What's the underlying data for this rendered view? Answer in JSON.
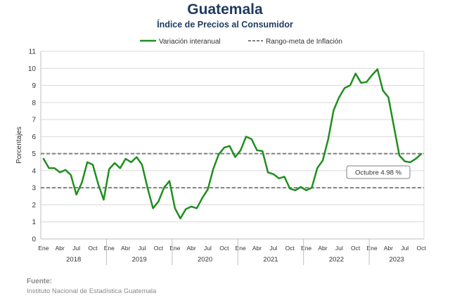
{
  "header": {
    "title": "Guatemala",
    "subtitle": "Índice de Precios al Consumidor"
  },
  "colors": {
    "line": "#1f8f1f",
    "target": "#808080",
    "text": "#1f3a5f"
  },
  "source": {
    "label": "Fuente:",
    "text": "Instituto Nacional de Estadística Guatemala"
  },
  "chart_data": {
    "type": "line",
    "title": "Guatemala",
    "subtitle": "Índice de Precios al Consumidor",
    "ylabel": "Porcentajes",
    "xlabel": "",
    "ylim": [
      0,
      11
    ],
    "yticks": [
      0,
      1,
      2,
      3,
      4,
      5,
      6,
      7,
      8,
      9,
      10,
      11
    ],
    "grid": true,
    "legend_position": "top",
    "month_tick_labels": [
      "Ene",
      "Abr",
      "Jul",
      "Oct"
    ],
    "years": [
      "2018",
      "2019",
      "2020",
      "2021",
      "2022",
      "2023"
    ],
    "x_start": "2018-01",
    "x_end": "2023-10",
    "series": [
      {
        "name": "Variación interanual",
        "style": "solid",
        "values": [
          4.7,
          4.15,
          4.15,
          3.9,
          4.05,
          3.75,
          2.6,
          3.3,
          4.5,
          4.35,
          3.2,
          2.3,
          4.1,
          4.45,
          4.15,
          4.7,
          4.5,
          4.8,
          4.35,
          3.0,
          1.8,
          2.2,
          3.0,
          3.4,
          1.8,
          1.2,
          1.75,
          1.9,
          1.8,
          2.4,
          2.9,
          4.1,
          4.95,
          5.35,
          5.45,
          4.8,
          5.2,
          6.0,
          5.85,
          5.2,
          5.15,
          3.9,
          3.8,
          3.55,
          3.65,
          2.95,
          2.85,
          3.05,
          2.85,
          3.0,
          4.15,
          4.6,
          5.85,
          7.55,
          8.3,
          8.85,
          9.0,
          9.7,
          9.15,
          9.2,
          9.6,
          9.95,
          8.7,
          8.3,
          6.6,
          4.9,
          4.55,
          4.5,
          4.7,
          4.98
        ]
      },
      {
        "name": "Rango-meta de Inflación",
        "style": "dashed",
        "values_upper": 5,
        "values_lower": 3
      }
    ],
    "annotation": {
      "text": "Octubre 4.98 %",
      "value": 4.98,
      "month": "2023-10"
    }
  }
}
